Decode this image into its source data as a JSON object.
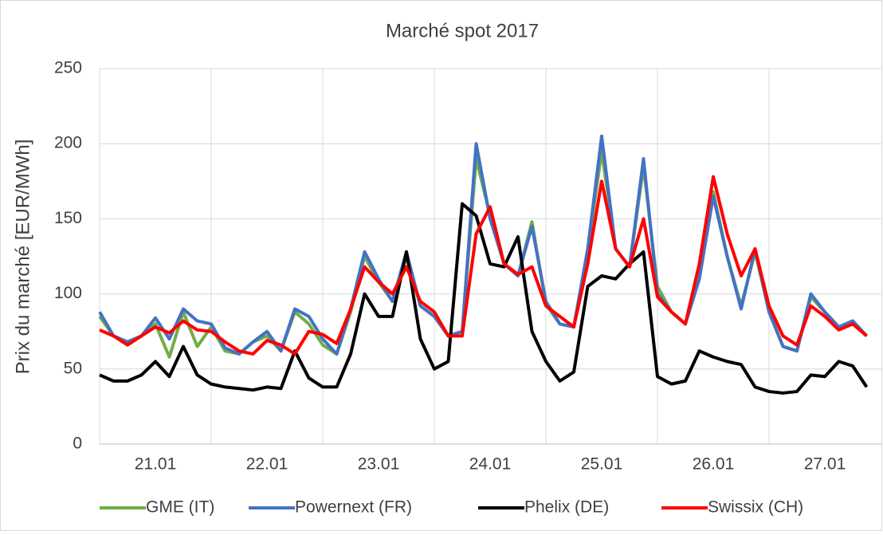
{
  "chart_data": {
    "type": "line",
    "title": "Marché spot 2017",
    "y_label": "Prix du marché [EUR/MWh]",
    "categories": [
      null,
      null,
      null,
      null,
      "21.01",
      null,
      null,
      null,
      null,
      null,
      null,
      null,
      "22.01",
      null,
      null,
      null,
      null,
      null,
      null,
      null,
      "23.01",
      null,
      null,
      null,
      null,
      null,
      null,
      null,
      "24.01",
      null,
      null,
      null,
      null,
      null,
      null,
      null,
      "25.01",
      null,
      null,
      null,
      null,
      null,
      null,
      null,
      "26.01",
      null,
      null,
      null,
      null,
      null,
      null,
      null,
      "27.01",
      null,
      null,
      null
    ],
    "series": [
      {
        "name": "GME (IT)",
        "color": "#70ad47",
        "values": [
          85,
          72,
          68,
          72,
          80,
          58,
          88,
          65,
          78,
          62,
          60,
          68,
          72,
          62,
          88,
          80,
          66,
          60,
          88,
          125,
          108,
          95,
          125,
          92,
          85,
          72,
          75,
          190,
          152,
          120,
          112,
          148,
          93,
          80,
          78,
          128,
          195,
          130,
          118,
          185,
          105,
          88,
          80,
          110,
          168,
          125,
          92,
          128,
          88,
          65,
          62,
          98,
          88,
          78,
          82,
          72
        ]
      },
      {
        "name": "Powernext (FR)",
        "color": "#4472c4",
        "values": [
          88,
          72,
          68,
          72,
          84,
          70,
          90,
          82,
          80,
          64,
          60,
          68,
          75,
          62,
          90,
          85,
          70,
          60,
          90,
          128,
          110,
          95,
          128,
          92,
          85,
          72,
          75,
          200,
          150,
          120,
          112,
          145,
          95,
          80,
          78,
          130,
          205,
          130,
          118,
          190,
          100,
          88,
          80,
          110,
          165,
          125,
          90,
          130,
          88,
          65,
          62,
          100,
          88,
          78,
          82,
          72
        ]
      },
      {
        "name": "Phelix (DE)",
        "color": "#000000",
        "values": [
          46,
          42,
          42,
          46,
          55,
          45,
          65,
          46,
          40,
          38,
          37,
          36,
          38,
          37,
          62,
          44,
          38,
          38,
          60,
          100,
          85,
          85,
          128,
          70,
          50,
          55,
          160,
          152,
          120,
          118,
          138,
          75,
          55,
          42,
          48,
          105,
          112,
          110,
          120,
          128,
          45,
          40,
          42,
          62,
          58,
          55,
          53,
          38,
          35,
          34,
          35,
          46,
          45,
          55,
          52,
          38
        ]
      },
      {
        "name": "Swissix (CH)",
        "color": "#ff0000",
        "values": [
          76,
          72,
          66,
          72,
          78,
          74,
          82,
          76,
          75,
          68,
          62,
          60,
          69,
          66,
          60,
          75,
          73,
          67,
          90,
          118,
          108,
          100,
          118,
          95,
          88,
          72,
          72,
          140,
          158,
          120,
          113,
          118,
          92,
          85,
          78,
          120,
          175,
          130,
          118,
          150,
          98,
          88,
          80,
          120,
          178,
          140,
          112,
          130,
          92,
          72,
          66,
          92,
          85,
          76,
          80,
          72
        ]
      }
    ],
    "ylim": [
      0,
      250
    ],
    "yticks": [
      0,
      50,
      100,
      150,
      200,
      250
    ],
    "grid": true,
    "legend": "bottom"
  }
}
